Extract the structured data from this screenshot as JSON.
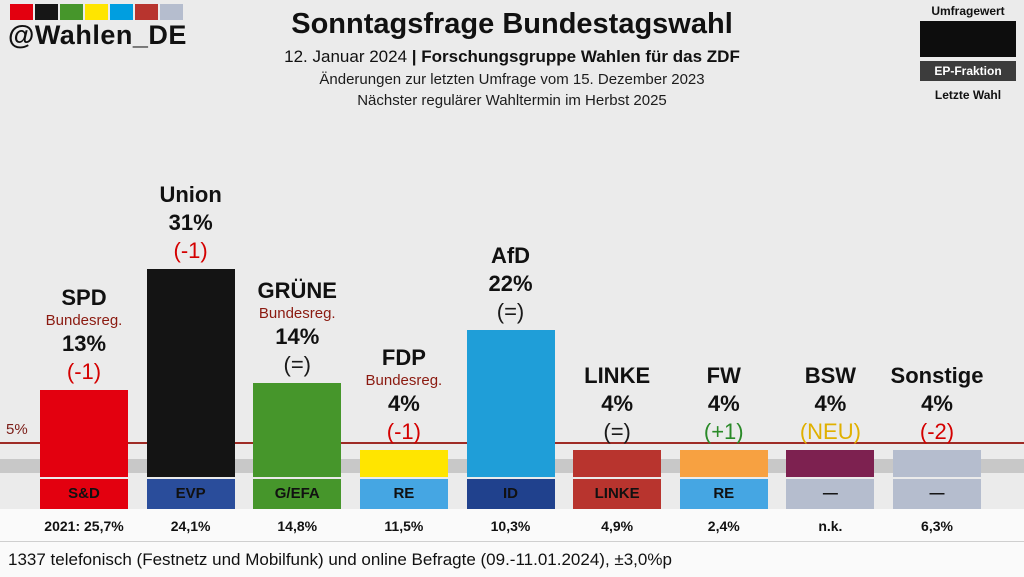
{
  "header": {
    "handle": "@Wahlen_DE",
    "logo_colors": [
      "#e3000f",
      "#161616",
      "#46962b",
      "#ffe500",
      "#009ee0",
      "#b8342e",
      "#b5bdce"
    ],
    "title": "Sonntagsfrage Bundestagswahl",
    "subtitle_date": "12. Januar 2024 ",
    "subtitle_source": "| Forschungsgruppe Wahlen für das ZDF",
    "subtitle_line2": "Änderungen zur letzten Umfrage vom 15. Dezember 2023",
    "subtitle_line3": "Nächster regulärer Wahltermin im Herbst 2025"
  },
  "legend": {
    "poll_label": "Umfragewert",
    "fraction_label": "EP-Fraktion",
    "last_label": "Letzte Wahl"
  },
  "chart_data": {
    "type": "bar",
    "title": "Sonntagsfrage Bundestagswahl",
    "unit": "%",
    "ylim": [
      0,
      33
    ],
    "grid": false,
    "threshold": {
      "value": 5,
      "label": "5%"
    },
    "parties": [
      {
        "name": "SPD",
        "gov": "Bundesreg.",
        "value": 13,
        "value_label": "13%",
        "change": "(-1)",
        "change_color": "#d40000",
        "bar_color": "#e3000f",
        "fraction": "S&D",
        "fraction_color": "#e3000f",
        "last": "2021: 25,7%"
      },
      {
        "name": "Union",
        "gov": "",
        "value": 31,
        "value_label": "31%",
        "change": "(-1)",
        "change_color": "#d40000",
        "bar_color": "#141414",
        "fraction": "EVP",
        "fraction_color": "#2a4d9b",
        "last": "24,1%"
      },
      {
        "name": "GRÜNE",
        "gov": "Bundesreg.",
        "value": 14,
        "value_label": "14%",
        "change": "(=)",
        "change_color": "#1a1a1a",
        "bar_color": "#46962b",
        "fraction": "G/EFA",
        "fraction_color": "#46962b",
        "last": "14,8%"
      },
      {
        "name": "FDP",
        "gov": "Bundesreg.",
        "value": 4,
        "value_label": "4%",
        "change": "(-1)",
        "change_color": "#d40000",
        "bar_color": "#ffe500",
        "fraction": "RE",
        "fraction_color": "#45a6e3",
        "last": "11,5%"
      },
      {
        "name": "AfD",
        "gov": "",
        "value": 22,
        "value_label": "22%",
        "change": "(=)",
        "change_color": "#1a1a1a",
        "bar_color": "#1f9ed8",
        "fraction": "ID",
        "fraction_color": "#20418d",
        "last": "10,3%"
      },
      {
        "name": "LINKE",
        "gov": "",
        "value": 4,
        "value_label": "4%",
        "change": "(=)",
        "change_color": "#1a1a1a",
        "bar_color": "#b8342e",
        "fraction": "LINKE",
        "fraction_color": "#b8342e",
        "last": "4,9%"
      },
      {
        "name": "FW",
        "gov": "",
        "value": 4,
        "value_label": "4%",
        "change": "(+1)",
        "change_color": "#2a8a28",
        "bar_color": "#f7a141",
        "fraction": "RE",
        "fraction_color": "#45a6e3",
        "last": "2,4%"
      },
      {
        "name": "BSW",
        "gov": "",
        "value": 4,
        "value_label": "4%",
        "change": "(NEU)",
        "change_color": "#e0b000",
        "bar_color": "#7d2150",
        "fraction": "—",
        "fraction_color": "#b5bdce",
        "last": "n.k."
      },
      {
        "name": "Sonstige",
        "gov": "",
        "value": 4,
        "value_label": "4%",
        "change": "(-2)",
        "change_color": "#d40000",
        "bar_color": "#b5bdce",
        "fraction": "—",
        "fraction_color": "#b5bdce",
        "last": "6,3%"
      }
    ]
  },
  "footer": {
    "note": "1337 telefonisch (Festnetz und Mobilfunk) und online Befragte (09.-11.01.2024), ±3,0%p"
  }
}
